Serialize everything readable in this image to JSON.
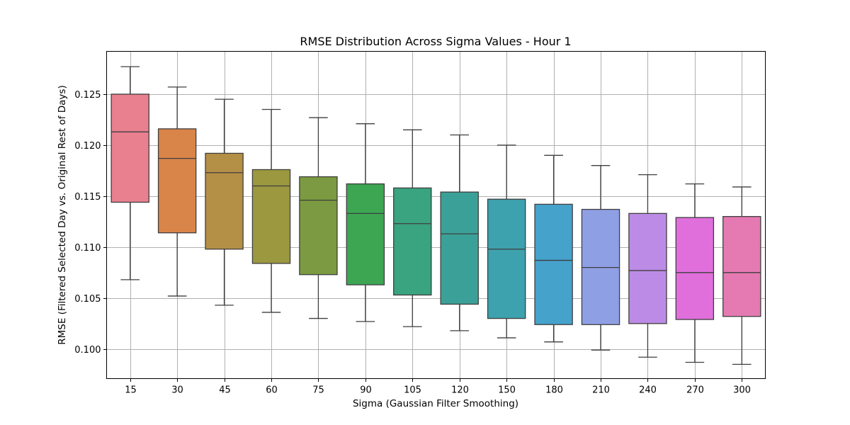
{
  "chart_data": {
    "type": "box",
    "title": "RMSE Distribution Across Sigma Values - Hour 1",
    "xlabel": "Sigma (Gaussian Filter Smoothing)",
    "ylabel": "RMSE (Filtered Selected Day vs. Original Rest of Days)",
    "ylim": [
      0.0971,
      0.1292
    ],
    "yticks": [
      0.1,
      0.105,
      0.11,
      0.115,
      0.12,
      0.125
    ],
    "ytick_labels": [
      "0.100",
      "0.105",
      "0.110",
      "0.115",
      "0.120",
      "0.125"
    ],
    "grid": true,
    "categories": [
      "15",
      "30",
      "45",
      "60",
      "75",
      "90",
      "105",
      "120",
      "150",
      "180",
      "210",
      "240",
      "270",
      "300"
    ],
    "boxes": [
      {
        "sigma": "15",
        "whisker_low": 0.1068,
        "q1": 0.1144,
        "median": 0.1213,
        "q3": 0.125,
        "whisker_high": 0.1277,
        "color": "#e8808f"
      },
      {
        "sigma": "30",
        "whisker_low": 0.1052,
        "q1": 0.1114,
        "median": 0.1187,
        "q3": 0.1216,
        "whisker_high": 0.1257,
        "color": "#d98448"
      },
      {
        "sigma": "45",
        "whisker_low": 0.1043,
        "q1": 0.1098,
        "median": 0.1173,
        "q3": 0.1192,
        "whisker_high": 0.1245,
        "color": "#b48f46"
      },
      {
        "sigma": "60",
        "whisker_low": 0.1036,
        "q1": 0.1084,
        "median": 0.116,
        "q3": 0.1176,
        "whisker_high": 0.1235,
        "color": "#9b983f"
      },
      {
        "sigma": "75",
        "whisker_low": 0.103,
        "q1": 0.1073,
        "median": 0.1146,
        "q3": 0.1169,
        "whisker_high": 0.1227,
        "color": "#7b9a41"
      },
      {
        "sigma": "90",
        "whisker_low": 0.1027,
        "q1": 0.1063,
        "median": 0.1133,
        "q3": 0.1162,
        "whisker_high": 0.1221,
        "color": "#3da653"
      },
      {
        "sigma": "105",
        "whisker_low": 0.1022,
        "q1": 0.1053,
        "median": 0.1123,
        "q3": 0.1158,
        "whisker_high": 0.1215,
        "color": "#3aa37f"
      },
      {
        "sigma": "120",
        "whisker_low": 0.1018,
        "q1": 0.1044,
        "median": 0.1113,
        "q3": 0.1154,
        "whisker_high": 0.121,
        "color": "#3ba198"
      },
      {
        "sigma": "150",
        "whisker_low": 0.1011,
        "q1": 0.103,
        "median": 0.1098,
        "q3": 0.1147,
        "whisker_high": 0.12,
        "color": "#3da1ae"
      },
      {
        "sigma": "180",
        "whisker_low": 0.1007,
        "q1": 0.1024,
        "median": 0.1087,
        "q3": 0.1142,
        "whisker_high": 0.119,
        "color": "#45a2cb"
      },
      {
        "sigma": "210",
        "whisker_low": 0.0999,
        "q1": 0.1024,
        "median": 0.108,
        "q3": 0.1137,
        "whisker_high": 0.118,
        "color": "#8f9fe4"
      },
      {
        "sigma": "240",
        "whisker_low": 0.0992,
        "q1": 0.1025,
        "median": 0.1077,
        "q3": 0.1133,
        "whisker_high": 0.1171,
        "color": "#bc8be6"
      },
      {
        "sigma": "270",
        "whisker_low": 0.0987,
        "q1": 0.1029,
        "median": 0.1075,
        "q3": 0.1129,
        "whisker_high": 0.1162,
        "color": "#e06fdc"
      },
      {
        "sigma": "300",
        "whisker_low": 0.0985,
        "q1": 0.1032,
        "median": 0.1075,
        "q3": 0.113,
        "whisker_high": 0.1159,
        "color": "#e57ab2"
      }
    ]
  }
}
